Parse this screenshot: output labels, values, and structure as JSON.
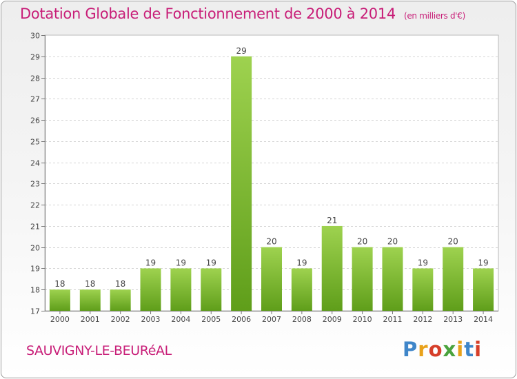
{
  "title": "Dotation Globale de Fonctionnement de 2000 à 2014",
  "unit_note": "(en milliers d'€)",
  "place_name": "SAUVIGNY-LE-BEURéAL",
  "logo": {
    "letters": [
      "P",
      "r",
      "o",
      "x",
      "i",
      "t",
      "i"
    ]
  },
  "colors": {
    "title": "#c81e78",
    "bar_top": "#9ed24f",
    "bar_bottom": "#5f9e1a"
  },
  "chart_data": {
    "type": "bar",
    "title": "Dotation Globale de Fonctionnement de 2000 à 2014",
    "xlabel": "",
    "ylabel": "",
    "ylim": [
      17,
      30
    ],
    "yticks": [
      17,
      18,
      19,
      20,
      21,
      22,
      23,
      24,
      25,
      26,
      27,
      28,
      29,
      30
    ],
    "grid": true,
    "categories": [
      "2000",
      "2001",
      "2002",
      "2003",
      "2004",
      "2005",
      "2006",
      "2007",
      "2008",
      "2009",
      "2010",
      "2011",
      "2012",
      "2013",
      "2014"
    ],
    "values": [
      18,
      18,
      18,
      19,
      19,
      19,
      29,
      20,
      19,
      21,
      20,
      20,
      19,
      20,
      19
    ]
  }
}
